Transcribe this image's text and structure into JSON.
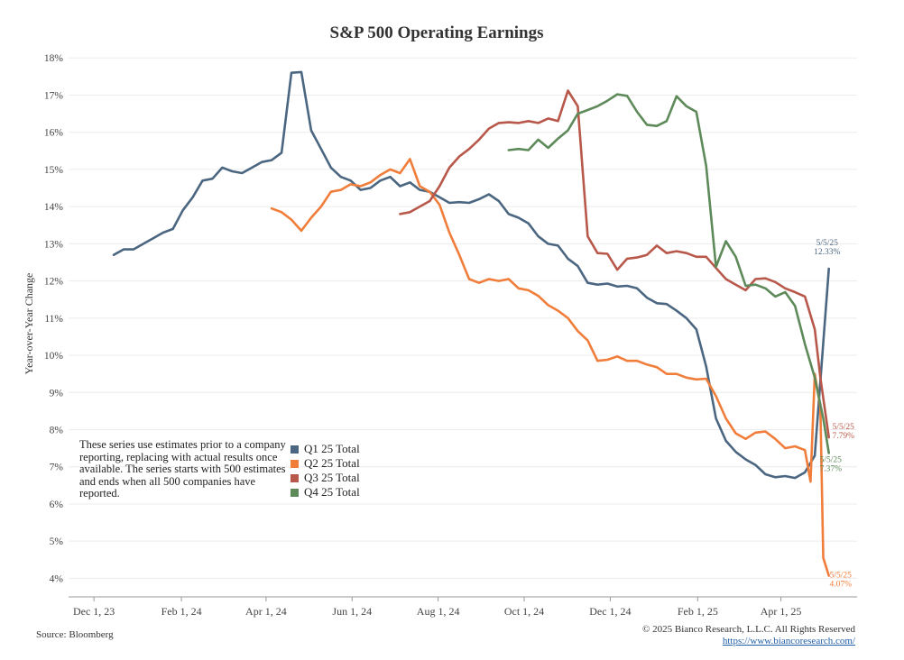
{
  "title": "S&P 500 Operating Earnings",
  "source": "Source: Bloomberg",
  "copyright": "© 2025 Bianco Research, L.L.C. All Rights Reserved",
  "url": "https://www.biancoresearch.com/",
  "note": "These series use estimates prior to a company reporting, replacing with actual results once available. The series starts with 500 estimates and ends when all 500 companies have reported.",
  "chart_data": {
    "type": "line",
    "title": "S&P 500 Operating Earnings",
    "xlabel": "",
    "ylabel": "Year-over-Year Change",
    "ylim": [
      3.5,
      18.2
    ],
    "y_ticks": [
      4,
      5,
      6,
      7,
      8,
      9,
      10,
      11,
      12,
      13,
      14,
      15,
      16,
      17,
      18
    ],
    "y_tick_format": "%",
    "xlim": [
      "2023-11-13",
      "2025-05-25"
    ],
    "x_ticks": [
      {
        "date": "2023-12-01",
        "label": "Dec 1, 23"
      },
      {
        "date": "2024-02-01",
        "label": "Feb 1, 24"
      },
      {
        "date": "2024-04-01",
        "label": "Apr 1, 24"
      },
      {
        "date": "2024-06-01",
        "label": "Jun 1, 24"
      },
      {
        "date": "2024-08-01",
        "label": "Aug 1, 24"
      },
      {
        "date": "2024-10-01",
        "label": "Oct 1, 24"
      },
      {
        "date": "2024-12-01",
        "label": "Dec 1, 24"
      },
      {
        "date": "2025-02-01",
        "label": "Feb 1, 25"
      },
      {
        "date": "2025-04-01",
        "label": "Apr 1, 25"
      }
    ],
    "grid": true,
    "series": [
      {
        "name": "Q1 25 Total",
        "color": "#4b6680",
        "end_label": {
          "date": "5/5/25",
          "value": "12.33%"
        },
        "points": [
          [
            "2023-12-15",
            12.7
          ],
          [
            "2023-12-22",
            12.85
          ],
          [
            "2023-12-29",
            12.85
          ],
          [
            "2024-01-05",
            13.0
          ],
          [
            "2024-01-12",
            13.15
          ],
          [
            "2024-01-19",
            13.3
          ],
          [
            "2024-01-26",
            13.4
          ],
          [
            "2024-02-02",
            13.9
          ],
          [
            "2024-02-09",
            14.25
          ],
          [
            "2024-02-16",
            14.7
          ],
          [
            "2024-02-23",
            14.75
          ],
          [
            "2024-03-01",
            15.05
          ],
          [
            "2024-03-08",
            14.95
          ],
          [
            "2024-03-15",
            14.9
          ],
          [
            "2024-03-22",
            15.05
          ],
          [
            "2024-03-29",
            15.2
          ],
          [
            "2024-04-05",
            15.25
          ],
          [
            "2024-04-12",
            15.45
          ],
          [
            "2024-04-19",
            17.6
          ],
          [
            "2024-04-26",
            17.62
          ],
          [
            "2024-05-03",
            16.05
          ],
          [
            "2024-05-10",
            15.55
          ],
          [
            "2024-05-17",
            15.05
          ],
          [
            "2024-05-24",
            14.8
          ],
          [
            "2024-05-31",
            14.7
          ],
          [
            "2024-06-07",
            14.45
          ],
          [
            "2024-06-14",
            14.5
          ],
          [
            "2024-06-21",
            14.7
          ],
          [
            "2024-06-28",
            14.8
          ],
          [
            "2024-07-05",
            14.55
          ],
          [
            "2024-07-12",
            14.65
          ],
          [
            "2024-07-19",
            14.45
          ],
          [
            "2024-07-26",
            14.4
          ],
          [
            "2024-08-02",
            14.25
          ],
          [
            "2024-08-09",
            14.1
          ],
          [
            "2024-08-16",
            14.12
          ],
          [
            "2024-08-23",
            14.1
          ],
          [
            "2024-08-30",
            14.2
          ],
          [
            "2024-09-06",
            14.33
          ],
          [
            "2024-09-13",
            14.15
          ],
          [
            "2024-09-20",
            13.8
          ],
          [
            "2024-09-27",
            13.7
          ],
          [
            "2024-10-04",
            13.55
          ],
          [
            "2024-10-11",
            13.2
          ],
          [
            "2024-10-18",
            13.0
          ],
          [
            "2024-10-25",
            12.95
          ],
          [
            "2024-11-01",
            12.6
          ],
          [
            "2024-11-08",
            12.4
          ],
          [
            "2024-11-15",
            11.95
          ],
          [
            "2024-11-22",
            11.9
          ],
          [
            "2024-11-29",
            11.93
          ],
          [
            "2024-12-06",
            11.85
          ],
          [
            "2024-12-13",
            11.87
          ],
          [
            "2024-12-20",
            11.8
          ],
          [
            "2024-12-27",
            11.55
          ],
          [
            "2025-01-03",
            11.4
          ],
          [
            "2025-01-10",
            11.38
          ],
          [
            "2025-01-17",
            11.2
          ],
          [
            "2025-01-24",
            11.0
          ],
          [
            "2025-01-31",
            10.7
          ],
          [
            "2025-02-07",
            9.7
          ],
          [
            "2025-02-14",
            8.3
          ],
          [
            "2025-02-21",
            7.7
          ],
          [
            "2025-02-28",
            7.4
          ],
          [
            "2025-03-07",
            7.2
          ],
          [
            "2025-03-14",
            7.05
          ],
          [
            "2025-03-21",
            6.8
          ],
          [
            "2025-03-28",
            6.72
          ],
          [
            "2025-04-04",
            6.75
          ],
          [
            "2025-04-11",
            6.7
          ],
          [
            "2025-04-18",
            6.85
          ],
          [
            "2025-04-25",
            7.3
          ],
          [
            "2025-05-05",
            12.33
          ]
        ]
      },
      {
        "name": "Q2 25 Total",
        "color": "#f07d3a",
        "end_label": {
          "date": "5/5/25",
          "value": "4.07%"
        },
        "points": [
          [
            "2024-04-05",
            13.95
          ],
          [
            "2024-04-12",
            13.85
          ],
          [
            "2024-04-19",
            13.65
          ],
          [
            "2024-04-26",
            13.35
          ],
          [
            "2024-05-03",
            13.7
          ],
          [
            "2024-05-10",
            14.0
          ],
          [
            "2024-05-17",
            14.4
          ],
          [
            "2024-05-24",
            14.45
          ],
          [
            "2024-05-31",
            14.6
          ],
          [
            "2024-06-07",
            14.55
          ],
          [
            "2024-06-14",
            14.65
          ],
          [
            "2024-06-21",
            14.85
          ],
          [
            "2024-06-28",
            15.0
          ],
          [
            "2024-07-05",
            14.9
          ],
          [
            "2024-07-12",
            15.28
          ],
          [
            "2024-07-19",
            14.55
          ],
          [
            "2024-07-26",
            14.4
          ],
          [
            "2024-08-02",
            14.05
          ],
          [
            "2024-08-09",
            13.3
          ],
          [
            "2024-08-16",
            12.7
          ],
          [
            "2024-08-23",
            12.05
          ],
          [
            "2024-08-30",
            11.95
          ],
          [
            "2024-09-06",
            12.05
          ],
          [
            "2024-09-13",
            12.0
          ],
          [
            "2024-09-20",
            12.05
          ],
          [
            "2024-09-27",
            11.8
          ],
          [
            "2024-10-04",
            11.75
          ],
          [
            "2024-10-11",
            11.6
          ],
          [
            "2024-10-18",
            11.35
          ],
          [
            "2024-10-25",
            11.2
          ],
          [
            "2024-11-01",
            11.0
          ],
          [
            "2024-11-08",
            10.65
          ],
          [
            "2024-11-15",
            10.4
          ],
          [
            "2024-11-22",
            9.85
          ],
          [
            "2024-11-29",
            9.88
          ],
          [
            "2024-12-06",
            9.97
          ],
          [
            "2024-12-13",
            9.85
          ],
          [
            "2024-12-20",
            9.85
          ],
          [
            "2024-12-27",
            9.75
          ],
          [
            "2025-01-03",
            9.68
          ],
          [
            "2025-01-10",
            9.5
          ],
          [
            "2025-01-17",
            9.5
          ],
          [
            "2025-01-24",
            9.4
          ],
          [
            "2025-01-31",
            9.35
          ],
          [
            "2025-02-07",
            9.37
          ],
          [
            "2025-02-14",
            8.9
          ],
          [
            "2025-02-21",
            8.3
          ],
          [
            "2025-02-28",
            7.9
          ],
          [
            "2025-03-07",
            7.75
          ],
          [
            "2025-03-14",
            7.92
          ],
          [
            "2025-03-21",
            7.95
          ],
          [
            "2025-03-28",
            7.75
          ],
          [
            "2025-04-04",
            7.5
          ],
          [
            "2025-04-11",
            7.55
          ],
          [
            "2025-04-18",
            7.45
          ],
          [
            "2025-04-22",
            6.6
          ],
          [
            "2025-04-25",
            9.5
          ],
          [
            "2025-04-29",
            8.6
          ],
          [
            "2025-05-01",
            4.55
          ],
          [
            "2025-05-05",
            4.07
          ]
        ]
      },
      {
        "name": "Q3 25 Total",
        "color": "#b8584a",
        "end_label": {
          "date": "5/5/25",
          "value": "7.79%"
        },
        "points": [
          [
            "2024-07-05",
            13.8
          ],
          [
            "2024-07-12",
            13.85
          ],
          [
            "2024-07-19",
            14.0
          ],
          [
            "2024-07-26",
            14.15
          ],
          [
            "2024-08-02",
            14.55
          ],
          [
            "2024-08-09",
            15.05
          ],
          [
            "2024-08-16",
            15.35
          ],
          [
            "2024-08-23",
            15.55
          ],
          [
            "2024-08-30",
            15.8
          ],
          [
            "2024-09-06",
            16.1
          ],
          [
            "2024-09-13",
            16.25
          ],
          [
            "2024-09-20",
            16.27
          ],
          [
            "2024-09-27",
            16.25
          ],
          [
            "2024-10-04",
            16.3
          ],
          [
            "2024-10-11",
            16.25
          ],
          [
            "2024-10-18",
            16.37
          ],
          [
            "2024-10-25",
            16.3
          ],
          [
            "2024-11-01",
            17.12
          ],
          [
            "2024-11-08",
            16.7
          ],
          [
            "2024-11-15",
            13.2
          ],
          [
            "2024-11-22",
            12.75
          ],
          [
            "2024-11-29",
            12.73
          ],
          [
            "2024-12-06",
            12.3
          ],
          [
            "2024-12-13",
            12.6
          ],
          [
            "2024-12-20",
            12.63
          ],
          [
            "2024-12-27",
            12.7
          ],
          [
            "2025-01-03",
            12.95
          ],
          [
            "2025-01-10",
            12.75
          ],
          [
            "2025-01-17",
            12.8
          ],
          [
            "2025-01-24",
            12.75
          ],
          [
            "2025-01-31",
            12.65
          ],
          [
            "2025-02-07",
            12.65
          ],
          [
            "2025-02-14",
            12.35
          ],
          [
            "2025-02-21",
            12.05
          ],
          [
            "2025-02-28",
            11.9
          ],
          [
            "2025-03-07",
            11.75
          ],
          [
            "2025-03-14",
            12.05
          ],
          [
            "2025-03-21",
            12.07
          ],
          [
            "2025-03-28",
            11.97
          ],
          [
            "2025-04-04",
            11.8
          ],
          [
            "2025-04-11",
            11.7
          ],
          [
            "2025-04-18",
            11.58
          ],
          [
            "2025-04-25",
            10.7
          ],
          [
            "2025-04-29",
            9.4
          ],
          [
            "2025-05-05",
            7.79
          ]
        ]
      },
      {
        "name": "Q4 25 Total",
        "color": "#5e8a5a",
        "end_label": {
          "date": "5/5/25",
          "value": "7.37%"
        },
        "points": [
          [
            "2024-09-20",
            15.52
          ],
          [
            "2024-09-27",
            15.55
          ],
          [
            "2024-10-04",
            15.52
          ],
          [
            "2024-10-11",
            15.8
          ],
          [
            "2024-10-18",
            15.58
          ],
          [
            "2024-10-25",
            15.83
          ],
          [
            "2024-11-01",
            16.05
          ],
          [
            "2024-11-08",
            16.5
          ],
          [
            "2024-11-15",
            16.6
          ],
          [
            "2024-11-22",
            16.7
          ],
          [
            "2024-11-29",
            16.85
          ],
          [
            "2024-12-06",
            17.02
          ],
          [
            "2024-12-13",
            16.98
          ],
          [
            "2024-12-20",
            16.55
          ],
          [
            "2024-12-27",
            16.2
          ],
          [
            "2025-01-03",
            16.17
          ],
          [
            "2025-01-10",
            16.3
          ],
          [
            "2025-01-17",
            16.97
          ],
          [
            "2025-01-24",
            16.7
          ],
          [
            "2025-01-31",
            16.55
          ],
          [
            "2025-02-07",
            15.1
          ],
          [
            "2025-02-14",
            12.38
          ],
          [
            "2025-02-21",
            13.07
          ],
          [
            "2025-02-28",
            12.65
          ],
          [
            "2025-03-07",
            11.87
          ],
          [
            "2025-03-14",
            11.9
          ],
          [
            "2025-03-21",
            11.8
          ],
          [
            "2025-03-28",
            11.58
          ],
          [
            "2025-04-04",
            11.7
          ],
          [
            "2025-04-11",
            11.33
          ],
          [
            "2025-04-18",
            10.3
          ],
          [
            "2025-04-25",
            9.4
          ],
          [
            "2025-05-01",
            8.3
          ],
          [
            "2025-05-05",
            7.37
          ]
        ]
      }
    ]
  }
}
